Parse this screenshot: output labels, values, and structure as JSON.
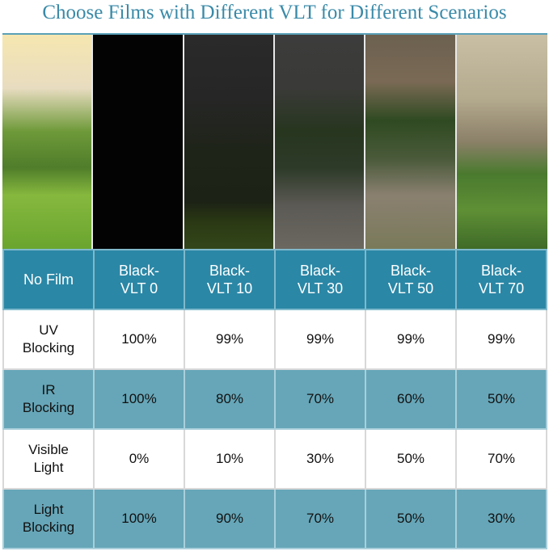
{
  "title": "Choose Films with Different VLT for Different Scenarios",
  "columns": [
    "No Film",
    "Black-\nVLT 0",
    "Black-\nVLT 10",
    "Black-\nVLT 30",
    "Black-\nVLT 50",
    "Black-\nVLT 70"
  ],
  "column_lines": [
    [
      "No Film",
      ""
    ],
    [
      "Black-",
      "VLT 0"
    ],
    [
      "Black-",
      "VLT 10"
    ],
    [
      "Black-",
      "VLT 30"
    ],
    [
      "Black-",
      "VLT 50"
    ],
    [
      "Black-",
      "VLT 70"
    ]
  ],
  "rows": [
    {
      "label": [
        "UV",
        "Blocking"
      ],
      "values": [
        "100%",
        "99%",
        "99%",
        "99%",
        "99%"
      ]
    },
    {
      "label": [
        "IR",
        "Blocking"
      ],
      "values": [
        "100%",
        "80%",
        "70%",
        "60%",
        "50%"
      ]
    },
    {
      "label": [
        "Visible",
        "Light"
      ],
      "values": [
        "0%",
        "10%",
        "30%",
        "50%",
        "70%"
      ]
    },
    {
      "label": [
        "Light",
        "Blocking"
      ],
      "values": [
        "100%",
        "90%",
        "70%",
        "50%",
        "30%"
      ]
    }
  ],
  "colors": {
    "header": "#2b87a6",
    "alt_row": "#66a6b8",
    "title": "#3a8aa8"
  }
}
